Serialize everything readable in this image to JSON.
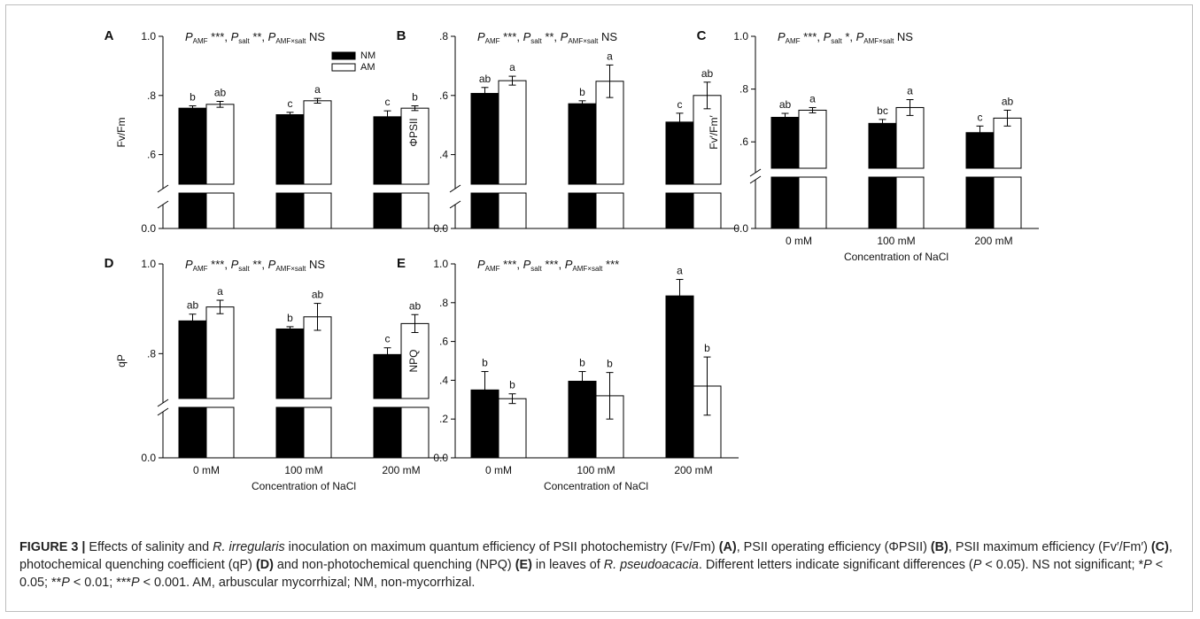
{
  "caption": {
    "segments": [
      {
        "t": "FIGURE 3 | ",
        "s": "b"
      },
      {
        "t": "Effects of salinity and ",
        "s": "n"
      },
      {
        "t": "R. irregularis",
        "s": "i"
      },
      {
        "t": " inoculation on maximum quantum efficiency of PSII photochemistry (Fv/Fm) ",
        "s": "n"
      },
      {
        "t": "(A)",
        "s": "b"
      },
      {
        "t": ", PSII operating efficiency (ΦPSII) ",
        "s": "n"
      },
      {
        "t": "(B)",
        "s": "b"
      },
      {
        "t": ", PSII maximum efficiency (Fv′/Fm′) ",
        "s": "n"
      },
      {
        "t": "(C)",
        "s": "b"
      },
      {
        "t": ", photochemical quenching coefficient (qP) ",
        "s": "n"
      },
      {
        "t": "(D)",
        "s": "b"
      },
      {
        "t": " and non-photochemical quenching (NPQ) ",
        "s": "n"
      },
      {
        "t": "(E)",
        "s": "b"
      },
      {
        "t": " in leaves of ",
        "s": "n"
      },
      {
        "t": "R. pseudoacacia",
        "s": "i"
      },
      {
        "t": ". Different letters indicate significant differences (",
        "s": "n"
      },
      {
        "t": "P",
        "s": "i"
      },
      {
        "t": " < 0.05). NS not significant; *",
        "s": "n"
      },
      {
        "t": "P",
        "s": "i"
      },
      {
        "t": " < 0.05; **",
        "s": "n"
      },
      {
        "t": "P",
        "s": "i"
      },
      {
        "t": " < 0.01; ***",
        "s": "n"
      },
      {
        "t": "P",
        "s": "i"
      },
      {
        "t": " < 0.001. AM, arbuscular mycorrhizal; NM, non-mycorrhizal.",
        "s": "n"
      }
    ]
  },
  "legend": {
    "items": [
      {
        "name": "NM",
        "fill": "#000000"
      },
      {
        "name": "AM",
        "fill": "#ffffff"
      }
    ]
  },
  "colors": {
    "nm": "#000000",
    "am": "#ffffff",
    "stroke": "#000000"
  },
  "chart_data": [
    {
      "panel": "A",
      "type": "bar",
      "ylabel": "Fv/Fm",
      "xlabel": "",
      "categories": [
        "0 mM",
        "100 mM",
        "200 mM"
      ],
      "show_categories": false,
      "ylim": [
        0.5,
        1.0
      ],
      "broken_axis": true,
      "yticks": [
        0.6,
        0.8,
        1.0
      ],
      "ytick_labels": [
        ".6",
        ".8",
        "1.0"
      ],
      "zero_label": "0.0",
      "stats": [
        {
          "sym": "AMF",
          "sig": "***"
        },
        {
          "sym": "salt",
          "sig": "**"
        },
        {
          "sym": "AMF×salt",
          "sig": "NS"
        }
      ],
      "series": [
        {
          "name": "NM",
          "values": [
            0.757,
            0.735,
            0.728
          ],
          "errors": [
            0.008,
            0.008,
            0.02
          ],
          "letters": [
            "b",
            "c",
            "c"
          ]
        },
        {
          "name": "AM",
          "values": [
            0.77,
            0.782,
            0.757
          ],
          "errors": [
            0.01,
            0.008,
            0.008
          ],
          "letters": [
            "ab",
            "a",
            "b"
          ]
        }
      ]
    },
    {
      "panel": "B",
      "type": "bar",
      "ylabel": "ΦPSII",
      "xlabel": "",
      "categories": [
        "0 mM",
        "100 mM",
        "200 mM"
      ],
      "show_categories": false,
      "ylim": [
        0.3,
        0.8
      ],
      "broken_axis": true,
      "yticks": [
        0.4,
        0.6,
        0.8
      ],
      "ytick_labels": [
        ".4",
        ".6",
        ".8"
      ],
      "zero_label": "0.0",
      "stats": [
        {
          "sym": "AMF",
          "sig": "***"
        },
        {
          "sym": "salt",
          "sig": "**"
        },
        {
          "sym": "AMF×salt",
          "sig": "NS"
        }
      ],
      "series": [
        {
          "name": "NM",
          "values": [
            0.607,
            0.572,
            0.51
          ],
          "errors": [
            0.02,
            0.01,
            0.03
          ],
          "letters": [
            "ab",
            "b",
            "c"
          ]
        },
        {
          "name": "AM",
          "values": [
            0.65,
            0.648,
            0.6
          ],
          "errors": [
            0.015,
            0.055,
            0.045
          ],
          "letters": [
            "a",
            "a",
            "ab"
          ]
        }
      ]
    },
    {
      "panel": "C",
      "type": "bar",
      "ylabel": "Fv′/Fm′",
      "xlabel": "Concentration of NaCl",
      "categories": [
        "0 mM",
        "100 mM",
        "200 mM"
      ],
      "show_categories": true,
      "ylim": [
        0.5,
        1.0
      ],
      "broken_axis": true,
      "yticks": [
        0.6,
        0.8,
        1.0
      ],
      "ytick_labels": [
        ".6",
        ".8",
        "1.0"
      ],
      "zero_label": "0.0",
      "stats": [
        {
          "sym": "AMF",
          "sig": "***"
        },
        {
          "sym": "salt",
          "sig": "*"
        },
        {
          "sym": "AMF×salt",
          "sig": "NS"
        }
      ],
      "series": [
        {
          "name": "NM",
          "values": [
            0.693,
            0.67,
            0.635
          ],
          "errors": [
            0.015,
            0.015,
            0.025
          ],
          "letters": [
            "ab",
            "bc",
            "c"
          ]
        },
        {
          "name": "AM",
          "values": [
            0.72,
            0.73,
            0.69
          ],
          "errors": [
            0.01,
            0.03,
            0.03
          ],
          "letters": [
            "a",
            "a",
            "ab"
          ]
        }
      ]
    },
    {
      "panel": "D",
      "type": "bar",
      "ylabel": "qP",
      "xlabel": "Concentration of NaCl",
      "categories": [
        "0 mM",
        "100 mM",
        "200 mM"
      ],
      "show_categories": true,
      "ylim": [
        0.7,
        1.0
      ],
      "broken_axis": true,
      "yticks": [
        0.8,
        1.0
      ],
      "ytick_labels": [
        ".8",
        "1.0"
      ],
      "zero_label": "0.0",
      "stats": [
        {
          "sym": "AMF",
          "sig": "***"
        },
        {
          "sym": "salt",
          "sig": "**"
        },
        {
          "sym": "AMF×salt",
          "sig": "NS"
        }
      ],
      "series": [
        {
          "name": "NM",
          "values": [
            0.873,
            0.855,
            0.798
          ],
          "errors": [
            0.015,
            0.005,
            0.015
          ],
          "letters": [
            "ab",
            "b",
            "c"
          ]
        },
        {
          "name": "AM",
          "values": [
            0.904,
            0.882,
            0.867
          ],
          "errors": [
            0.015,
            0.03,
            0.02
          ],
          "letters": [
            "a",
            "ab",
            "ab"
          ]
        }
      ]
    },
    {
      "panel": "E",
      "type": "bar",
      "ylabel": "NPQ",
      "xlabel": "Concentration of NaCl",
      "categories": [
        "0 mM",
        "100 mM",
        "200 mM"
      ],
      "show_categories": true,
      "ylim": [
        0.0,
        1.0
      ],
      "broken_axis": false,
      "yticks": [
        0.0,
        0.2,
        0.4,
        0.6,
        0.8,
        1.0
      ],
      "ytick_labels": [
        "0.0",
        ".2",
        ".4",
        ".6",
        ".8",
        "1.0"
      ],
      "zero_label": "",
      "stats": [
        {
          "sym": "AMF",
          "sig": "***"
        },
        {
          "sym": "salt",
          "sig": "***"
        },
        {
          "sym": "AMF×salt",
          "sig": "***"
        }
      ],
      "series": [
        {
          "name": "NM",
          "values": [
            0.35,
            0.395,
            0.835
          ],
          "errors": [
            0.095,
            0.05,
            0.085
          ],
          "letters": [
            "b",
            "b",
            "a"
          ]
        },
        {
          "name": "AM",
          "values": [
            0.305,
            0.32,
            0.37
          ],
          "errors": [
            0.025,
            0.12,
            0.15
          ],
          "letters": [
            "b",
            "b",
            "b"
          ]
        }
      ]
    }
  ]
}
